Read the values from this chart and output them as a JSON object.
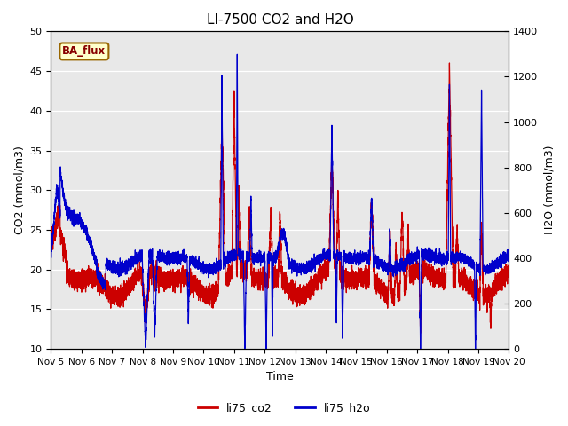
{
  "title": "LI-7500 CO2 and H2O",
  "xlabel": "Time",
  "ylabel_left": "CO2 (mmol/m3)",
  "ylabel_right": "H2O (mmol/m3)",
  "ylim_left": [
    10,
    50
  ],
  "ylim_right": [
    0,
    1400
  ],
  "yticks_left": [
    10,
    15,
    20,
    25,
    30,
    35,
    40,
    45,
    50
  ],
  "yticks_right": [
    0,
    200,
    400,
    600,
    800,
    1000,
    1200,
    1400
  ],
  "xtick_labels": [
    "Nov 5",
    "Nov 6",
    "Nov 7",
    "Nov 8",
    "Nov 9",
    "Nov 10",
    "Nov 11",
    "Nov 12",
    "Nov 13",
    "Nov 14",
    "Nov 15",
    "Nov 16",
    "Nov 17",
    "Nov 18",
    "Nov 19",
    "Nov 20"
  ],
  "color_co2": "#cc0000",
  "color_h2o": "#0000cc",
  "legend_label_co2": "li75_co2",
  "legend_label_h2o": "li75_h2o",
  "box_label": "BA_flux",
  "box_facecolor": "#ffffcc",
  "box_edgecolor": "#996600",
  "plot_bg_color": "#e8e8e8",
  "title_fontsize": 11,
  "axis_label_fontsize": 9,
  "tick_fontsize": 8,
  "legend_fontsize": 9,
  "linewidth_co2": 0.9,
  "linewidth_h2o": 0.9
}
